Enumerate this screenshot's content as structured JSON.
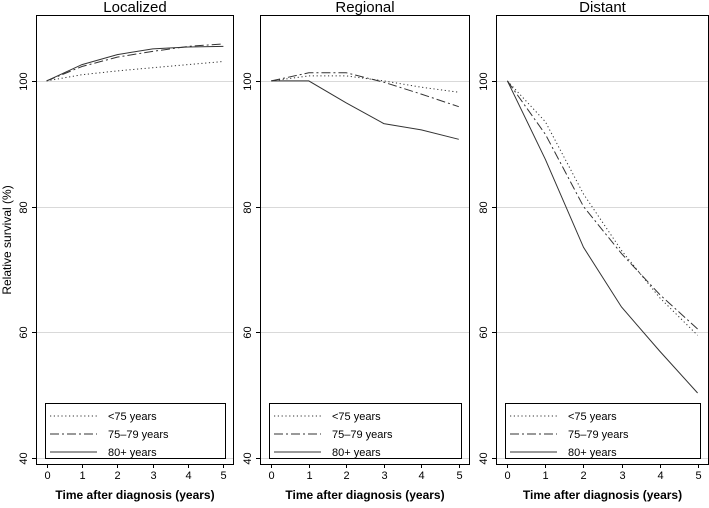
{
  "chart_data": [
    {
      "type": "line",
      "title": "Localized",
      "xlabel": "Time after diagnosis (years)",
      "ylabel": "Relative survival (%)",
      "x": [
        0,
        1,
        2,
        3,
        4,
        5
      ],
      "xticks": [
        "0",
        "1",
        "2",
        "3",
        "4",
        "5"
      ],
      "yticks": [
        "40",
        "60",
        "80",
        "100"
      ],
      "ylim": [
        39,
        110.5
      ],
      "xlim": [
        -0.3,
        5.3
      ],
      "grid": true,
      "legend_position": "bottom",
      "series": [
        {
          "name": "<75 years",
          "style": "dotted",
          "values": [
            100,
            101.0,
            101.6,
            102.1,
            102.6,
            103.1
          ]
        },
        {
          "name": "75–79 years",
          "style": "dashdot",
          "values": [
            100,
            102.3,
            103.8,
            104.7,
            105.5,
            105.9
          ]
        },
        {
          "name": "80+ years",
          "style": "solid",
          "values": [
            100,
            102.6,
            104.2,
            105.1,
            105.4,
            105.5
          ]
        }
      ]
    },
    {
      "type": "line",
      "title": "Regional",
      "xlabel": "Time after diagnosis (years)",
      "ylabel": "",
      "x": [
        0,
        1,
        2,
        3,
        4,
        5
      ],
      "xticks": [
        "0",
        "1",
        "2",
        "3",
        "4",
        "5"
      ],
      "yticks": [
        "40",
        "60",
        "80",
        "100"
      ],
      "ylim": [
        39,
        110.5
      ],
      "xlim": [
        -0.3,
        5.3
      ],
      "grid": true,
      "legend_position": "bottom",
      "series": [
        {
          "name": "<75 years",
          "style": "dotted",
          "values": [
            100,
            100.8,
            100.8,
            100.0,
            99.0,
            98.2
          ]
        },
        {
          "name": "75–79 years",
          "style": "dashdot",
          "values": [
            100,
            101.3,
            101.3,
            99.8,
            97.9,
            95.9
          ]
        },
        {
          "name": "80+ years",
          "style": "solid",
          "values": [
            100,
            100.0,
            96.5,
            93.2,
            92.2,
            90.7
          ]
        }
      ]
    },
    {
      "type": "line",
      "title": "Distant",
      "xlabel": "Time after diagnosis (years)",
      "ylabel": "",
      "x": [
        0,
        1,
        2,
        3,
        4,
        5
      ],
      "xticks": [
        "0",
        "1",
        "2",
        "3",
        "4",
        "5"
      ],
      "yticks": [
        "40",
        "60",
        "80",
        "100"
      ],
      "ylim": [
        39,
        110.5
      ],
      "xlim": [
        -0.3,
        5.3
      ],
      "grid": true,
      "legend_position": "bottom",
      "series": [
        {
          "name": "<75 years",
          "style": "dotted",
          "values": [
            100,
            93.5,
            82.0,
            73.0,
            65.5,
            59.5
          ]
        },
        {
          "name": "75–79 years",
          "style": "dashdot",
          "values": [
            100,
            91.5,
            80.0,
            72.5,
            66.0,
            60.5
          ]
        },
        {
          "name": "80+ years",
          "style": "solid",
          "values": [
            100,
            87.5,
            73.5,
            64.0,
            57.0,
            50.3
          ]
        }
      ]
    }
  ],
  "colors": {
    "series_line": "#333333",
    "grid": "#d9d9d9",
    "frame": "#000000"
  }
}
